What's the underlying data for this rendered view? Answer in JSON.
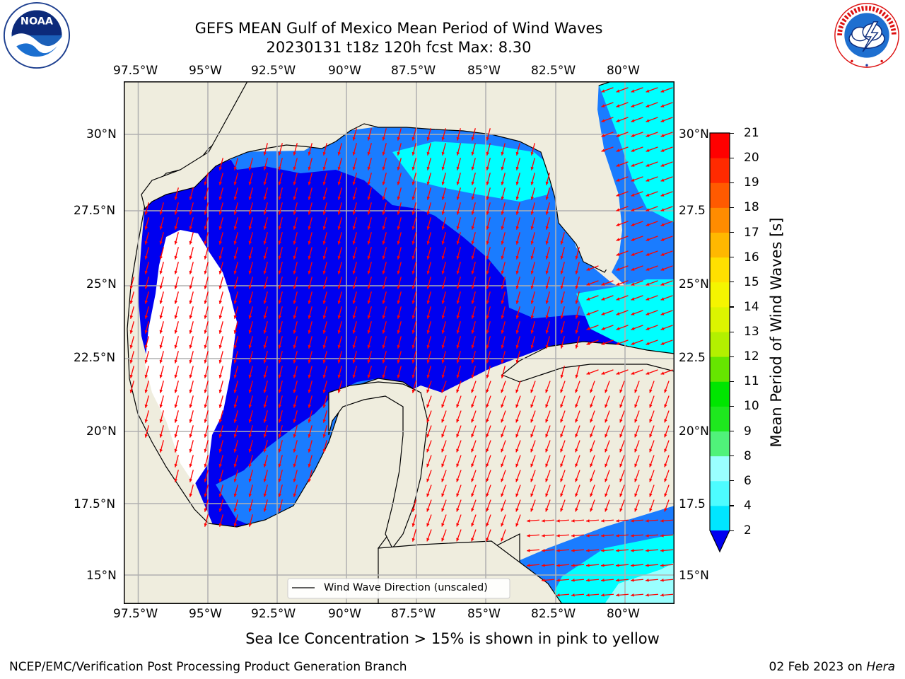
{
  "header": {
    "title_line1": "GEFS MEAN Gulf of Mexico Mean Period of Wind Waves",
    "title_line2": "20230131 t18z 120h fcst   Max: 8.30"
  },
  "logos": {
    "left": {
      "text": "NOAA",
      "ring_text": "NATIONAL OCEANIC AND ATMOSPHERIC ADMINISTRATION · U.S. DEPARTMENT OF COMMERCE"
    },
    "right": {
      "ring_text": "NATIONAL WEATHER SERVICE"
    }
  },
  "map": {
    "lon_labels": [
      "97.5°W",
      "95°W",
      "92.5°W",
      "90°W",
      "87.5°W",
      "85°W",
      "82.5°W",
      "80°W"
    ],
    "lat_labels_left": [
      "30°N",
      "27.5°N",
      "25°N",
      "22.5°N",
      "20°N",
      "17.5°N",
      "15°N"
    ],
    "lat_labels_right": [
      "30°N",
      "27.5",
      "25°N",
      "22.5",
      "20°N",
      "17.5",
      "15°N"
    ],
    "legend_label": "Wind Wave Direction (unscaled)",
    "colors": {
      "land": "#efedde",
      "low_period": "#0000f0",
      "period_2_4": "#1a7cff",
      "period_4_6": "#00ffff",
      "period_6_8": "#4dfcff",
      "arrow": "#ff0000",
      "ice_white": "#ffffff"
    }
  },
  "colorbar": {
    "label": "Mean Period of Wind Waves [s]",
    "ticks": [
      "2",
      "4",
      "6",
      "8",
      "9",
      "10",
      "11",
      "12",
      "13",
      "14",
      "15",
      "16",
      "17",
      "18",
      "19",
      "20",
      "21"
    ],
    "colors": [
      "#0571ff",
      "#00e6ff",
      "#4dfcff",
      "#9affff",
      "#50f27a",
      "#1ee81e",
      "#00e600",
      "#66e600",
      "#b3f000",
      "#dcf500",
      "#f5f500",
      "#ffe000",
      "#ffb800",
      "#ff8c00",
      "#ff5a00",
      "#ff2a00",
      "#ff0000"
    ]
  },
  "caption": "Sea Ice Concentration > 15% is shown in pink to yellow",
  "footer": {
    "left": "NCEP/EMC/Verification Post Processing Product Generation Branch",
    "right_prefix": "02 Feb 2023 on ",
    "right_host": "Hera"
  }
}
